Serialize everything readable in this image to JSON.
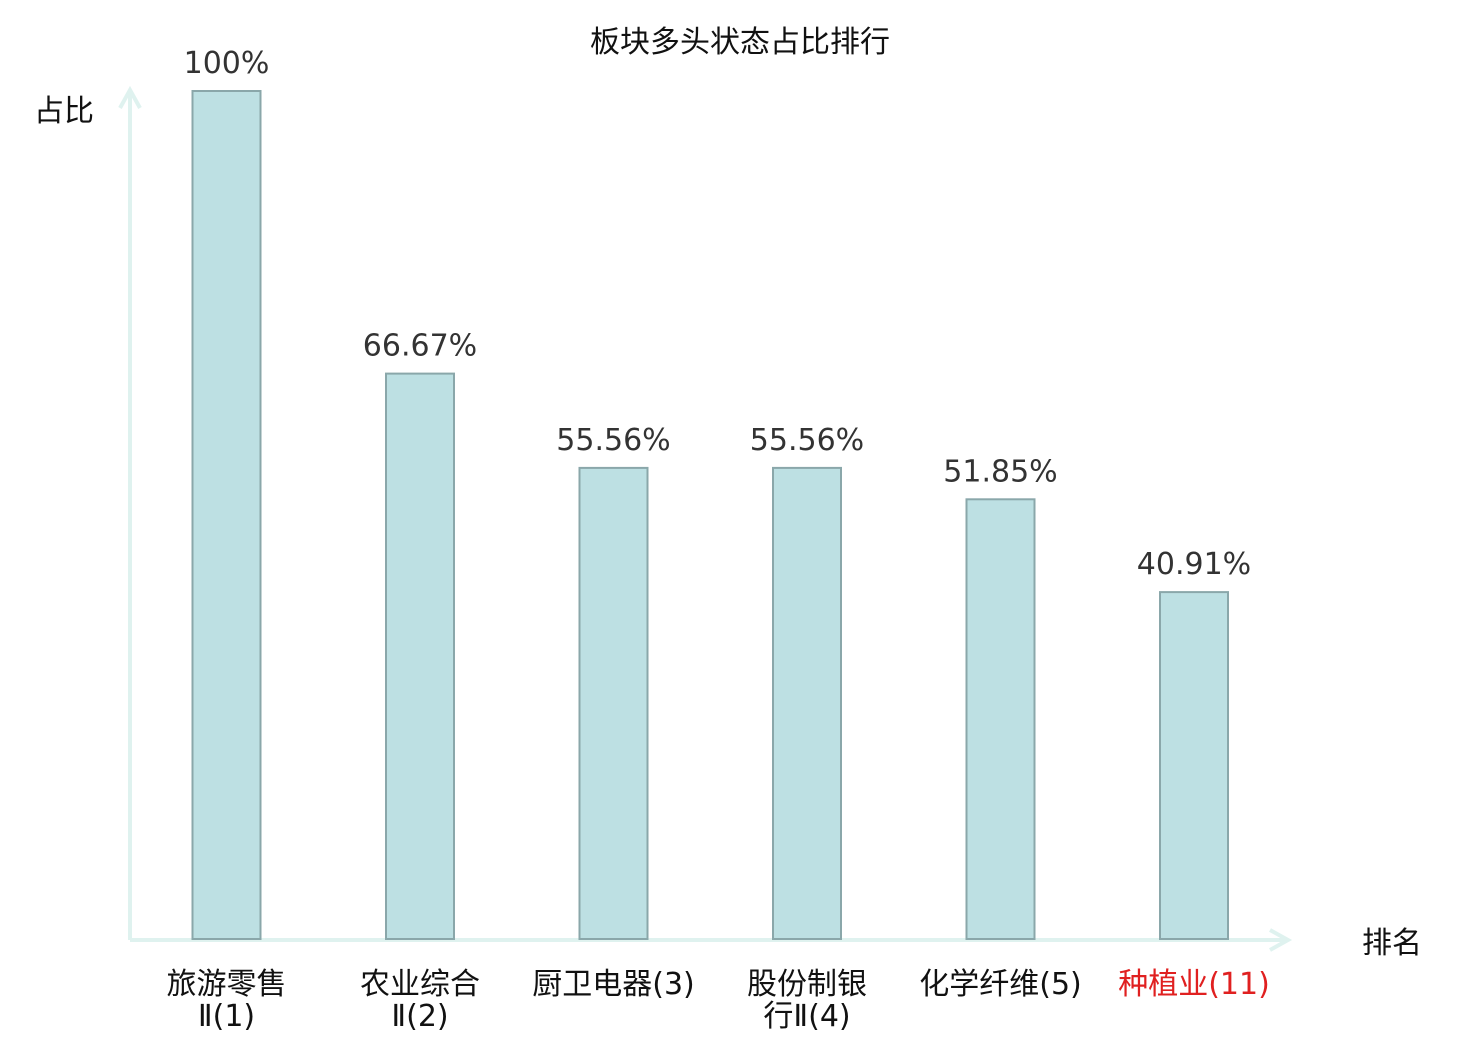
{
  "chart_data": {
    "type": "bar",
    "title": "板块多头状态占比排行",
    "ylabel": "占比",
    "xlabel": "排名",
    "categories": [
      [
        "旅游零售",
        "Ⅱ(1)"
      ],
      [
        "农业综合",
        "Ⅱ(2)"
      ],
      [
        "厨卫电器(3)"
      ],
      [
        "股份制银",
        "行Ⅱ(4)"
      ],
      [
        "化学纤维(5)"
      ],
      [
        "种植业(11)"
      ]
    ],
    "values": [
      100,
      66.67,
      55.56,
      55.56,
      51.85,
      40.91
    ],
    "value_labels": [
      "100%",
      "66.67%",
      "55.56%",
      "55.56%",
      "51.85%",
      "40.91%"
    ],
    "highlight_index": 5,
    "ylim": [
      0,
      100
    ],
    "grid": false,
    "legend": "none",
    "colors": {
      "bar_fill": "#bde0e3",
      "bar_stroke": "#8aa7aa",
      "axis": "#dff2ef",
      "text": "#333333",
      "highlight_text": "#e02020"
    }
  }
}
